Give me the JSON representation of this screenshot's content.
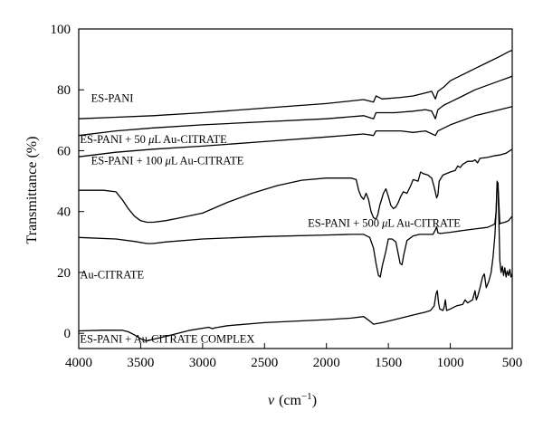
{
  "chart_data": {
    "type": "line",
    "title": "",
    "xlabel_symbol": "ν",
    "xlabel_unit": "(cm",
    "xlabel_exp": "−1",
    "xlabel_close": ")",
    "ylabel": "Transmittance (%)",
    "xlim": [
      4000,
      500
    ],
    "ylim": [
      -5,
      100
    ],
    "xticks": [
      4000,
      3500,
      3000,
      2500,
      2000,
      1500,
      1000,
      500
    ],
    "yticks": [
      0,
      20,
      40,
      60,
      80,
      100
    ],
    "grid": false,
    "series": [
      {
        "name": "ES-PANI",
        "label_parts": [
          "ES-PANI"
        ],
        "label_anchor": [
          3900,
          76
        ],
        "points": [
          [
            4000,
            70.5
          ],
          [
            3700,
            71
          ],
          [
            3400,
            71.5
          ],
          [
            3000,
            72.5
          ],
          [
            2500,
            74
          ],
          [
            2000,
            75.5
          ],
          [
            1700,
            76.8
          ],
          [
            1620,
            76
          ],
          [
            1600,
            78
          ],
          [
            1550,
            77
          ],
          [
            1400,
            77.5
          ],
          [
            1300,
            78
          ],
          [
            1200,
            79
          ],
          [
            1150,
            79.5
          ],
          [
            1120,
            77
          ],
          [
            1100,
            79.5
          ],
          [
            1050,
            81
          ],
          [
            1000,
            83
          ],
          [
            900,
            85
          ],
          [
            800,
            87
          ],
          [
            700,
            89
          ],
          [
            600,
            91
          ],
          [
            530,
            92.5
          ],
          [
            500,
            93
          ]
        ]
      },
      {
        "name": "ES-PANI + 50 μL Au-CITRATE",
        "label_parts": [
          "ES-PANI + 50 ",
          "μ",
          "L Au-CITRATE"
        ],
        "label_anchor": [
          3990,
          62.5
        ],
        "points": [
          [
            4000,
            65
          ],
          [
            3700,
            66.5
          ],
          [
            3400,
            67.5
          ],
          [
            3000,
            68.5
          ],
          [
            2500,
            69.5
          ],
          [
            2000,
            70.5
          ],
          [
            1700,
            71.5
          ],
          [
            1620,
            70.5
          ],
          [
            1600,
            72.5
          ],
          [
            1450,
            72.5
          ],
          [
            1300,
            73
          ],
          [
            1200,
            73.5
          ],
          [
            1150,
            73
          ],
          [
            1120,
            70.5
          ],
          [
            1100,
            73.5
          ],
          [
            1050,
            75
          ],
          [
            1000,
            76
          ],
          [
            900,
            78
          ],
          [
            800,
            80
          ],
          [
            700,
            81.5
          ],
          [
            600,
            83
          ],
          [
            530,
            84
          ],
          [
            500,
            84.5
          ]
        ]
      },
      {
        "name": "ES-PANI + 100 μL Au-CITRATE",
        "label_parts": [
          "ES-PANI + 100 ",
          "μ",
          "L Au-CITRATE"
        ],
        "label_anchor": [
          3900,
          55.5
        ],
        "points": [
          [
            4000,
            58
          ],
          [
            3700,
            59.5
          ],
          [
            3400,
            60.5
          ],
          [
            3000,
            61.5
          ],
          [
            2500,
            63
          ],
          [
            2000,
            64.5
          ],
          [
            1700,
            65.5
          ],
          [
            1620,
            65
          ],
          [
            1600,
            66.5
          ],
          [
            1400,
            66.5
          ],
          [
            1300,
            66
          ],
          [
            1200,
            66.5
          ],
          [
            1120,
            65
          ],
          [
            1100,
            66.5
          ],
          [
            1050,
            67.5
          ],
          [
            1000,
            68.5
          ],
          [
            900,
            70
          ],
          [
            800,
            71.5
          ],
          [
            700,
            72.5
          ],
          [
            600,
            73.5
          ],
          [
            500,
            74.5
          ]
        ]
      },
      {
        "name": "ES-PANI + 500 μL Au-CITRATE",
        "label_parts": [
          "ES-PANI + 500 ",
          "μ",
          "L Au-CITRATE"
        ],
        "label_anchor": [
          2150,
          35
        ],
        "points": [
          [
            4000,
            47
          ],
          [
            3800,
            47
          ],
          [
            3700,
            46.5
          ],
          [
            3650,
            44
          ],
          [
            3600,
            41
          ],
          [
            3550,
            38.5
          ],
          [
            3500,
            37
          ],
          [
            3450,
            36.5
          ],
          [
            3400,
            36.5
          ],
          [
            3300,
            37
          ],
          [
            3200,
            37.8
          ],
          [
            3000,
            39.5
          ],
          [
            2800,
            43
          ],
          [
            2600,
            46
          ],
          [
            2400,
            48.5
          ],
          [
            2200,
            50.3
          ],
          [
            2000,
            51
          ],
          [
            1800,
            51
          ],
          [
            1760,
            50.5
          ],
          [
            1740,
            47
          ],
          [
            1720,
            45
          ],
          [
            1700,
            44
          ],
          [
            1680,
            46
          ],
          [
            1660,
            44
          ],
          [
            1640,
            40
          ],
          [
            1620,
            38
          ],
          [
            1600,
            37.5
          ],
          [
            1585,
            39
          ],
          [
            1570,
            42
          ],
          [
            1540,
            46
          ],
          [
            1520,
            47.5
          ],
          [
            1500,
            45
          ],
          [
            1480,
            42
          ],
          [
            1460,
            41
          ],
          [
            1440,
            41.5
          ],
          [
            1420,
            43
          ],
          [
            1400,
            45
          ],
          [
            1380,
            46.5
          ],
          [
            1350,
            46
          ],
          [
            1320,
            48.5
          ],
          [
            1300,
            50.5
          ],
          [
            1260,
            50
          ],
          [
            1240,
            53
          ],
          [
            1220,
            52.5
          ],
          [
            1180,
            52
          ],
          [
            1150,
            51
          ],
          [
            1130,
            48
          ],
          [
            1110,
            44.5
          ],
          [
            1100,
            45.5
          ],
          [
            1090,
            50
          ],
          [
            1060,
            52
          ],
          [
            1000,
            53
          ],
          [
            960,
            53.5
          ],
          [
            940,
            55
          ],
          [
            920,
            54.5
          ],
          [
            900,
            55.5
          ],
          [
            860,
            56.5
          ],
          [
            820,
            56.5
          ],
          [
            800,
            57
          ],
          [
            780,
            56
          ],
          [
            760,
            57.5
          ],
          [
            700,
            57.8
          ],
          [
            650,
            58.3
          ],
          [
            600,
            58.6
          ],
          [
            550,
            59.2
          ],
          [
            500,
            60.5
          ]
        ]
      },
      {
        "name": "Au-CITRATE",
        "label_parts": [
          "Au-CITRATE"
        ],
        "label_anchor": [
          3990,
          18
        ],
        "points": [
          [
            4000,
            31.5
          ],
          [
            3700,
            31
          ],
          [
            3550,
            30.2
          ],
          [
            3450,
            29.5
          ],
          [
            3400,
            29.5
          ],
          [
            3300,
            30
          ],
          [
            3000,
            31
          ],
          [
            2500,
            31.8
          ],
          [
            2000,
            32.3
          ],
          [
            1800,
            32.5
          ],
          [
            1700,
            32.5
          ],
          [
            1650,
            31.5
          ],
          [
            1620,
            28
          ],
          [
            1600,
            23
          ],
          [
            1580,
            19
          ],
          [
            1565,
            18.5
          ],
          [
            1550,
            22
          ],
          [
            1520,
            27
          ],
          [
            1500,
            31
          ],
          [
            1470,
            31
          ],
          [
            1440,
            30
          ],
          [
            1420,
            26
          ],
          [
            1405,
            23
          ],
          [
            1390,
            22.5
          ],
          [
            1375,
            26
          ],
          [
            1350,
            30.5
          ],
          [
            1300,
            32
          ],
          [
            1250,
            32.5
          ],
          [
            1200,
            32.5
          ],
          [
            1140,
            32.5
          ],
          [
            1120,
            34
          ],
          [
            1110,
            35
          ],
          [
            1100,
            33
          ],
          [
            1080,
            32.8
          ],
          [
            1000,
            33.2
          ],
          [
            900,
            33.8
          ],
          [
            800,
            34.3
          ],
          [
            700,
            34.8
          ],
          [
            660,
            35.5
          ],
          [
            640,
            36
          ],
          [
            630,
            40
          ],
          [
            622,
            49
          ],
          [
            615,
            49.5
          ],
          [
            610,
            45
          ],
          [
            600,
            36
          ],
          [
            590,
            36.2
          ],
          [
            560,
            36.5
          ],
          [
            530,
            37
          ],
          [
            500,
            38.5
          ]
        ]
      },
      {
        "name": "ES-PANI + Au-CITRATE COMPLEX",
        "label_parts": [
          "ES-PANI + Au-CITRATE COMPLEX"
        ],
        "label_anchor": [
          3990,
          -3
        ],
        "points": [
          [
            4000,
            0.8
          ],
          [
            3800,
            1
          ],
          [
            3650,
            1
          ],
          [
            3600,
            0.5
          ],
          [
            3550,
            -0.5
          ],
          [
            3500,
            -1.8
          ],
          [
            3450,
            -2.5
          ],
          [
            3400,
            -2
          ],
          [
            3300,
            -1
          ],
          [
            3200,
            0
          ],
          [
            3100,
            1
          ],
          [
            2950,
            2
          ],
          [
            2920,
            1.5
          ],
          [
            2900,
            1.8
          ],
          [
            2800,
            2.5
          ],
          [
            2500,
            3.5
          ],
          [
            2000,
            4.5
          ],
          [
            1800,
            5
          ],
          [
            1700,
            5.5
          ],
          [
            1650,
            4
          ],
          [
            1620,
            3
          ],
          [
            1550,
            3.5
          ],
          [
            1500,
            4
          ],
          [
            1400,
            5
          ],
          [
            1300,
            6
          ],
          [
            1200,
            7
          ],
          [
            1160,
            7.5
          ],
          [
            1130,
            9
          ],
          [
            1115,
            13
          ],
          [
            1105,
            14
          ],
          [
            1095,
            10
          ],
          [
            1085,
            8
          ],
          [
            1060,
            7.5
          ],
          [
            1050,
            8.5
          ],
          [
            1040,
            11
          ],
          [
            1030,
            7.5
          ],
          [
            1000,
            8
          ],
          [
            950,
            9
          ],
          [
            900,
            9.5
          ],
          [
            880,
            11
          ],
          [
            860,
            10
          ],
          [
            820,
            11
          ],
          [
            800,
            14
          ],
          [
            790,
            11
          ],
          [
            780,
            12
          ],
          [
            760,
            15
          ],
          [
            740,
            18.5
          ],
          [
            725,
            19.5
          ],
          [
            710,
            15
          ],
          [
            690,
            17
          ],
          [
            670,
            20
          ],
          [
            655,
            25
          ],
          [
            640,
            32
          ],
          [
            630,
            40
          ],
          [
            622,
            50
          ],
          [
            615,
            48
          ],
          [
            608,
            38
          ],
          [
            600,
            24
          ],
          [
            590,
            20
          ],
          [
            580,
            22
          ],
          [
            570,
            19
          ],
          [
            560,
            21.5
          ],
          [
            550,
            18.5
          ],
          [
            540,
            20.5
          ],
          [
            530,
            19
          ],
          [
            520,
            21
          ],
          [
            510,
            18.5
          ],
          [
            500,
            19.5
          ]
        ]
      }
    ]
  }
}
